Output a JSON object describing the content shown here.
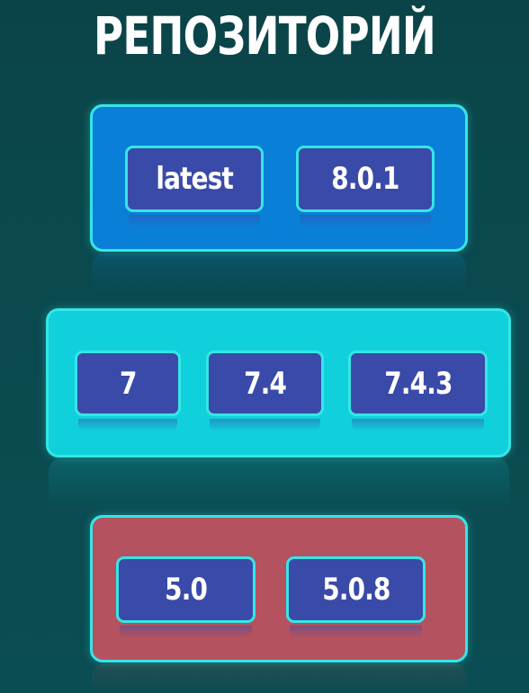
{
  "title": "РЕПОЗИТОРИЙ",
  "groups": [
    {
      "tags": [
        "latest",
        "8.0.1"
      ],
      "color": "#0a7fd8"
    },
    {
      "tags": [
        "7",
        "7.4",
        "7.4.3"
      ],
      "color": "#10d0dc"
    },
    {
      "tags": [
        "5.0",
        "5.0.8"
      ],
      "color": "#b4525f"
    }
  ],
  "colors": {
    "background": "#0a4a4e",
    "tag_fill": "#3a4aa8",
    "tag_border": "#35e6e6"
  }
}
